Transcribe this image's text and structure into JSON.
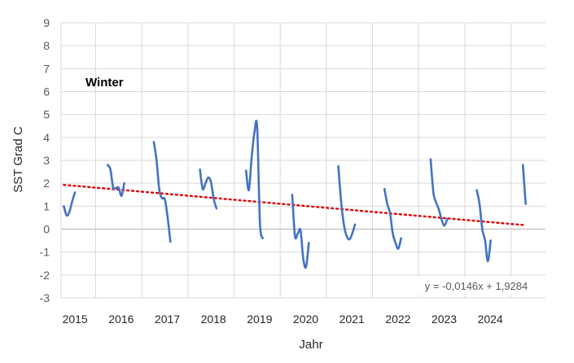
{
  "chart_data": {
    "type": "line",
    "title": "",
    "annotation": "Winter",
    "xlabel": "Jahr",
    "ylabel": "SST Grad C",
    "xlim": [
      2014.75,
      2025.25
    ],
    "ylim": [
      -3,
      9
    ],
    "yticks": [
      -3,
      -2,
      -1,
      0,
      1,
      2,
      3,
      4,
      5,
      6,
      7,
      8,
      9
    ],
    "xtick_labels": [
      "2015",
      "2016",
      "2017",
      "2018",
      "2019",
      "2020",
      "2021",
      "2022",
      "2023",
      "2024"
    ],
    "xtick_values": [
      2015,
      2016,
      2017,
      2018,
      2019,
      2020,
      2021,
      2022,
      2023,
      2024
    ],
    "grid": true,
    "legend": "none",
    "colors": {
      "series": "#4472c4",
      "trend": "#e00000",
      "grid": "#d9d9d9"
    },
    "series": [
      {
        "segments": [
          [
            [
              2014.81,
              1.0
            ],
            [
              2014.87,
              0.6
            ],
            [
              2014.93,
              0.75
            ],
            [
              2014.99,
              1.2
            ],
            [
              2015.05,
              1.6
            ]
          ],
          [
            [
              2015.76,
              2.8
            ],
            [
              2015.82,
              2.6
            ],
            [
              2015.88,
              1.8
            ],
            [
              2015.94,
              1.8
            ],
            [
              2016.0,
              1.8
            ],
            [
              2016.06,
              1.45
            ],
            [
              2016.12,
              2.0
            ]
          ],
          [
            [
              2016.76,
              3.8
            ],
            [
              2016.82,
              3.0
            ],
            [
              2016.88,
              1.7
            ],
            [
              2016.94,
              1.35
            ],
            [
              2017.0,
              1.3
            ],
            [
              2017.06,
              0.5
            ],
            [
              2017.12,
              -0.55
            ]
          ],
          [
            [
              2017.76,
              2.6
            ],
            [
              2017.82,
              1.75
            ],
            [
              2017.88,
              2.0
            ],
            [
              2017.94,
              2.25
            ],
            [
              2018.0,
              2.05
            ],
            [
              2018.06,
              1.3
            ],
            [
              2018.12,
              0.9
            ]
          ],
          [
            [
              2018.76,
              2.55
            ],
            [
              2018.82,
              1.7
            ],
            [
              2018.88,
              3.1
            ],
            [
              2018.94,
              4.2
            ],
            [
              2019.0,
              4.45
            ],
            [
              2019.06,
              0.3
            ],
            [
              2019.12,
              -0.4
            ]
          ],
          [
            [
              2019.76,
              1.5
            ],
            [
              2019.82,
              -0.3
            ],
            [
              2019.88,
              -0.2
            ],
            [
              2019.94,
              -0.05
            ],
            [
              2020.0,
              -1.3
            ],
            [
              2020.06,
              -1.65
            ],
            [
              2020.12,
              -0.6
            ]
          ],
          [
            [
              2020.76,
              2.75
            ],
            [
              2020.82,
              1.2
            ],
            [
              2020.88,
              0.2
            ],
            [
              2020.94,
              -0.3
            ],
            [
              2021.0,
              -0.45
            ],
            [
              2021.06,
              -0.2
            ],
            [
              2021.12,
              0.2
            ]
          ],
          [
            [
              2021.76,
              1.75
            ],
            [
              2021.82,
              1.1
            ],
            [
              2021.88,
              0.7
            ],
            [
              2021.94,
              -0.2
            ],
            [
              2022.0,
              -0.6
            ],
            [
              2022.06,
              -0.85
            ],
            [
              2022.12,
              -0.4
            ]
          ],
          [
            [
              2022.76,
              3.05
            ],
            [
              2022.82,
              1.6
            ],
            [
              2022.88,
              1.15
            ],
            [
              2022.94,
              0.85
            ],
            [
              2023.0,
              0.4
            ],
            [
              2023.06,
              0.15
            ],
            [
              2023.12,
              0.45
            ]
          ],
          [
            [
              2023.76,
              1.7
            ],
            [
              2023.82,
              1.1
            ],
            [
              2023.88,
              0.0
            ],
            [
              2023.94,
              -0.5
            ],
            [
              2024.0,
              -1.4
            ],
            [
              2024.06,
              -0.5
            ]
          ],
          [
            [
              2024.76,
              2.8
            ],
            [
              2024.82,
              1.1
            ]
          ]
        ]
      }
    ],
    "trendline": {
      "equation": "y = -0,0146x + 1,9284",
      "x": [
        2014.81,
        2024.82
      ],
      "y": [
        1.93,
        0.17
      ]
    }
  }
}
